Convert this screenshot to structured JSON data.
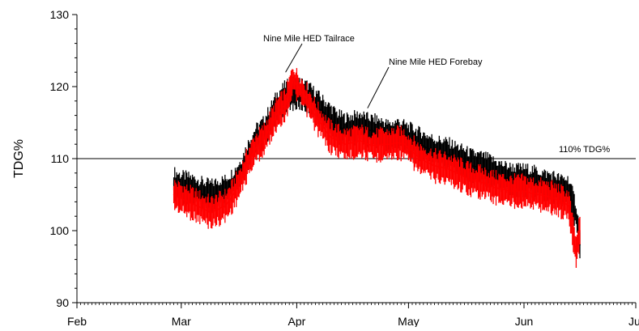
{
  "chart_data": {
    "type": "line",
    "title": "",
    "xlabel": "",
    "ylabel": "TDG%",
    "ylim": [
      90,
      130
    ],
    "yticks": [
      90,
      100,
      110,
      120,
      130
    ],
    "x_range": [
      "Feb 1",
      "Jul 1"
    ],
    "x_tick_labels": [
      {
        "label": "Feb",
        "date": "Feb 1"
      },
      {
        "label": "Mar",
        "date": "Mar 1"
      },
      {
        "label": "Apr",
        "date": "Apr 1"
      },
      {
        "label": "May",
        "date": "May 1"
      },
      {
        "label": "Jun",
        "date": "Jun 1"
      },
      {
        "label": "Jul",
        "date": "Jul 1"
      }
    ],
    "grid": false,
    "reference_lines": [
      {
        "y": 110,
        "label": "110% TDG%",
        "color": "#000000"
      }
    ],
    "series": [
      {
        "name": "Nine Mile HED Forebay",
        "color": "#000000",
        "points": [
          {
            "date": "Feb 27",
            "y": 106.5
          },
          {
            "date": "Mar 1",
            "y": 106.0
          },
          {
            "date": "Mar 3",
            "y": 105.8
          },
          {
            "date": "Mar 5",
            "y": 105.5
          },
          {
            "date": "Mar 7",
            "y": 105.0
          },
          {
            "date": "Mar 9",
            "y": 104.8
          },
          {
            "date": "Mar 11",
            "y": 105.2
          },
          {
            "date": "Mar 13",
            "y": 105.5
          },
          {
            "date": "Mar 15",
            "y": 106.5
          },
          {
            "date": "Mar 17",
            "y": 108.0
          },
          {
            "date": "Mar 19",
            "y": 110.5
          },
          {
            "date": "Mar 21",
            "y": 112.5
          },
          {
            "date": "Mar 23",
            "y": 113.5
          },
          {
            "date": "Mar 25",
            "y": 115.5
          },
          {
            "date": "Mar 27",
            "y": 117.5
          },
          {
            "date": "Mar 29",
            "y": 118.5
          },
          {
            "date": "Mar 31",
            "y": 119.0
          },
          {
            "date": "Apr 2",
            "y": 119.0
          },
          {
            "date": "Apr 4",
            "y": 118.5
          },
          {
            "date": "Apr 6",
            "y": 117.5
          },
          {
            "date": "Apr 8",
            "y": 116.5
          },
          {
            "date": "Apr 10",
            "y": 115.5
          },
          {
            "date": "Apr 12",
            "y": 114.5
          },
          {
            "date": "Apr 14",
            "y": 114.0
          },
          {
            "date": "Apr 16",
            "y": 114.2
          },
          {
            "date": "Apr 18",
            "y": 114.5
          },
          {
            "date": "Apr 20",
            "y": 114.0
          },
          {
            "date": "Apr 22",
            "y": 113.8
          },
          {
            "date": "Apr 24",
            "y": 113.5
          },
          {
            "date": "Apr 26",
            "y": 113.0
          },
          {
            "date": "Apr 28",
            "y": 113.5
          },
          {
            "date": "Apr 30",
            "y": 113.0
          },
          {
            "date": "May 2",
            "y": 112.5
          },
          {
            "date": "May 4",
            "y": 112.0
          },
          {
            "date": "May 6",
            "y": 111.5
          },
          {
            "date": "May 8",
            "y": 111.0
          },
          {
            "date": "May 10",
            "y": 110.8
          },
          {
            "date": "May 12",
            "y": 110.5
          },
          {
            "date": "May 14",
            "y": 110.0
          },
          {
            "date": "May 16",
            "y": 109.5
          },
          {
            "date": "May 18",
            "y": 109.0
          },
          {
            "date": "May 20",
            "y": 108.8
          },
          {
            "date": "May 22",
            "y": 108.5
          },
          {
            "date": "May 24",
            "y": 108.0
          },
          {
            "date": "May 26",
            "y": 107.5
          },
          {
            "date": "May 28",
            "y": 107.2
          },
          {
            "date": "May 30",
            "y": 107.0
          },
          {
            "date": "Jun 1",
            "y": 107.0
          },
          {
            "date": "Jun 3",
            "y": 106.8
          },
          {
            "date": "Jun 5",
            "y": 106.5
          },
          {
            "date": "Jun 7",
            "y": 106.2
          },
          {
            "date": "Jun 9",
            "y": 106.0
          },
          {
            "date": "Jun 11",
            "y": 105.5
          },
          {
            "date": "Jun 13",
            "y": 105.5
          },
          {
            "date": "Jun 15",
            "y": 102.0
          },
          {
            "date": "Jun 16",
            "y": 98.0
          }
        ]
      },
      {
        "name": "Nine Mile HED Tailrace",
        "color": "#ff0000",
        "points": [
          {
            "date": "Feb 27",
            "y": 105.0
          },
          {
            "date": "Mar 1",
            "y": 104.5
          },
          {
            "date": "Mar 3",
            "y": 104.0
          },
          {
            "date": "Mar 5",
            "y": 103.5
          },
          {
            "date": "Mar 7",
            "y": 103.0
          },
          {
            "date": "Mar 9",
            "y": 102.5
          },
          {
            "date": "Mar 11",
            "y": 103.0
          },
          {
            "date": "Mar 13",
            "y": 103.5
          },
          {
            "date": "Mar 15",
            "y": 105.0
          },
          {
            "date": "Mar 17",
            "y": 107.0
          },
          {
            "date": "Mar 19",
            "y": 109.5
          },
          {
            "date": "Mar 21",
            "y": 111.5
          },
          {
            "date": "Mar 23",
            "y": 112.5
          },
          {
            "date": "Mar 25",
            "y": 114.5
          },
          {
            "date": "Mar 27",
            "y": 116.5
          },
          {
            "date": "Mar 29",
            "y": 117.5
          },
          {
            "date": "Mar 31",
            "y": 121.0
          },
          {
            "date": "Apr 2",
            "y": 119.5
          },
          {
            "date": "Apr 4",
            "y": 118.0
          },
          {
            "date": "Apr 6",
            "y": 116.0
          },
          {
            "date": "Apr 8",
            "y": 114.5
          },
          {
            "date": "Apr 10",
            "y": 113.0
          },
          {
            "date": "Apr 12",
            "y": 112.5
          },
          {
            "date": "Apr 14",
            "y": 112.0
          },
          {
            "date": "Apr 16",
            "y": 112.2
          },
          {
            "date": "Apr 18",
            "y": 112.5
          },
          {
            "date": "Apr 20",
            "y": 112.0
          },
          {
            "date": "Apr 22",
            "y": 111.8
          },
          {
            "date": "Apr 24",
            "y": 112.0
          },
          {
            "date": "Apr 26",
            "y": 112.0
          },
          {
            "date": "Apr 28",
            "y": 112.2
          },
          {
            "date": "Apr 30",
            "y": 112.0
          },
          {
            "date": "May 2",
            "y": 111.0
          },
          {
            "date": "May 4",
            "y": 110.0
          },
          {
            "date": "May 6",
            "y": 109.5
          },
          {
            "date": "May 8",
            "y": 109.0
          },
          {
            "date": "May 10",
            "y": 108.8
          },
          {
            "date": "May 12",
            "y": 108.5
          },
          {
            "date": "May 14",
            "y": 108.0
          },
          {
            "date": "May 16",
            "y": 107.5
          },
          {
            "date": "May 18",
            "y": 107.0
          },
          {
            "date": "May 20",
            "y": 106.8
          },
          {
            "date": "May 22",
            "y": 106.5
          },
          {
            "date": "May 24",
            "y": 106.0
          },
          {
            "date": "May 26",
            "y": 105.8
          },
          {
            "date": "May 28",
            "y": 105.5
          },
          {
            "date": "May 30",
            "y": 105.5
          },
          {
            "date": "Jun 1",
            "y": 105.5
          },
          {
            "date": "Jun 3",
            "y": 105.2
          },
          {
            "date": "Jun 5",
            "y": 105.0
          },
          {
            "date": "Jun 7",
            "y": 104.8
          },
          {
            "date": "Jun 9",
            "y": 104.5
          },
          {
            "date": "Jun 11",
            "y": 104.0
          },
          {
            "date": "Jun 13",
            "y": 103.5
          },
          {
            "date": "Jun 15",
            "y": 97.0
          },
          {
            "date": "Jun 16",
            "y": 100.0
          }
        ]
      }
    ],
    "annotations": [
      {
        "text": "Nine Mile HED Tailrace",
        "target_series": "Nine Mile HED Tailrace",
        "target": {
          "date": "Mar 29",
          "y": 122.0
        }
      },
      {
        "text": "Nine Mile HED Forebay",
        "target_series": "Nine Mile HED Forebay",
        "target": {
          "date": "Apr 20",
          "y": 117.0
        }
      }
    ]
  }
}
